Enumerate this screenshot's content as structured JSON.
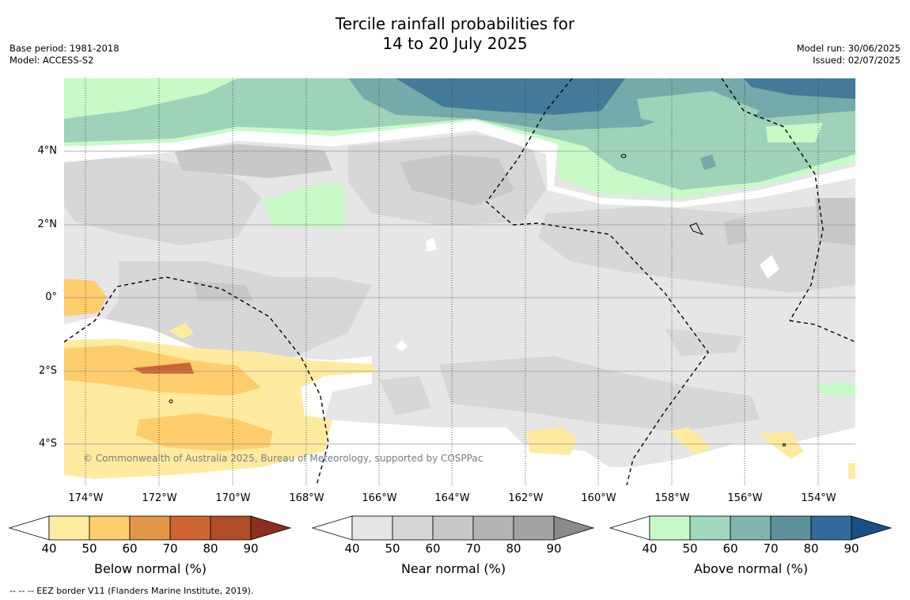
{
  "title": {
    "line1": "Tercile rainfall probabilities for",
    "line2": "14 to 20 July 2025"
  },
  "meta_left": {
    "base_period": "Base period: 1981-2018",
    "model": "Model: ACCESS-S2"
  },
  "meta_right": {
    "model_run": "Model run: 30/06/2025",
    "issued": "Issued: 02/07/2025"
  },
  "map": {
    "lon_ticks": [
      "174°W",
      "172°W",
      "170°W",
      "168°W",
      "166°W",
      "164°W",
      "162°W",
      "160°W",
      "158°W",
      "156°W",
      "154°W"
    ],
    "lat_ticks": [
      "4°N",
      "2°N",
      "0°",
      "2°S",
      "4°S"
    ],
    "copyright": "© Commonwealth of Australia 2025, Bureau of Meteorology, supported by COSPPac",
    "colors": {
      "near_40": "#e6e6e6",
      "near_50": "#d7d7d7",
      "near_60": "#c8c8c8",
      "above_40": "#c8fac8",
      "above_50": "#9ed2b9",
      "above_60": "#74aaaa",
      "above_70": "#437a99",
      "below_40": "#ffeba0",
      "below_50": "#ffcd6b",
      "below_70": "#cd6432"
    }
  },
  "colorbars": [
    {
      "label": "Below normal (%)",
      "ticks": [
        "40",
        "50",
        "60",
        "70",
        "80",
        "90"
      ],
      "colors": [
        "#ffeea0",
        "#ffcd6b",
        "#e39645",
        "#cd6432",
        "#b04c27"
      ],
      "extend_color": "#8c2f1e"
    },
    {
      "label": "Near normal (%)",
      "ticks": [
        "40",
        "50",
        "60",
        "70",
        "80",
        "90"
      ],
      "colors": [
        "#e6e6e6",
        "#d7d7d7",
        "#c8c8c8",
        "#b4b4b4",
        "#a3a3a3"
      ],
      "extend_color": "#8a8a8a"
    },
    {
      "label": "Above normal (%)",
      "ticks": [
        "40",
        "50",
        "60",
        "70",
        "80",
        "90"
      ],
      "colors": [
        "#c8fac8",
        "#a2d8bd",
        "#82b5b0",
        "#5e9199",
        "#336a99"
      ],
      "extend_color": "#1a4e85"
    }
  ],
  "footer": "--  --  -- EEZ border V11 (Flanders Marine Institute, 2019)."
}
